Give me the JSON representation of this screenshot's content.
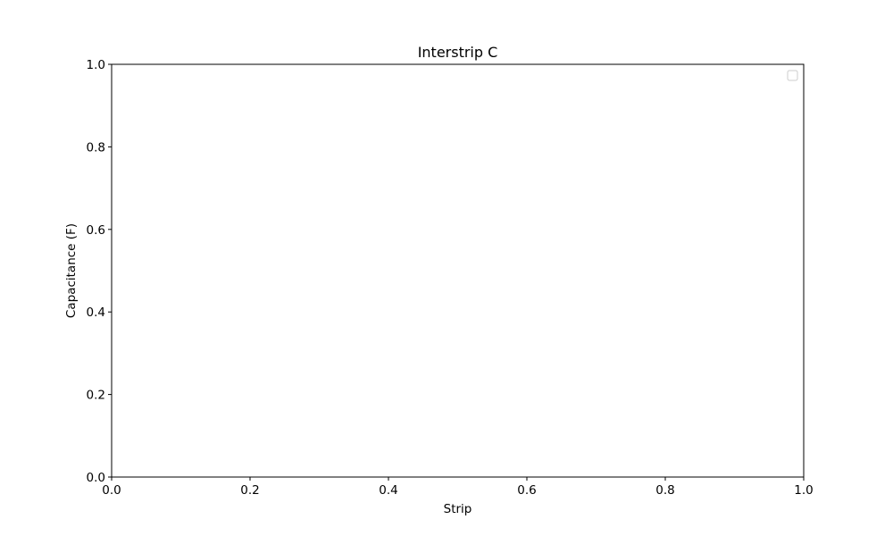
{
  "chart_data": {
    "type": "line",
    "title": "Interstrip C",
    "xlabel": "Strip",
    "ylabel": "Capacitance (F)",
    "xlim": [
      0.0,
      1.0
    ],
    "ylim": [
      0.0,
      1.0
    ],
    "x_ticks": [
      "0.0",
      "0.2",
      "0.4",
      "0.6",
      "0.8",
      "1.0"
    ],
    "y_ticks": [
      "0.0",
      "0.2",
      "0.4",
      "0.6",
      "0.8",
      "1.0"
    ],
    "series": [],
    "grid": false,
    "legend": {
      "placement": "top-right",
      "entries": []
    },
    "colors": {
      "axes": "#000000",
      "background": "#ffffff",
      "legend_border": "#cccccc"
    }
  }
}
